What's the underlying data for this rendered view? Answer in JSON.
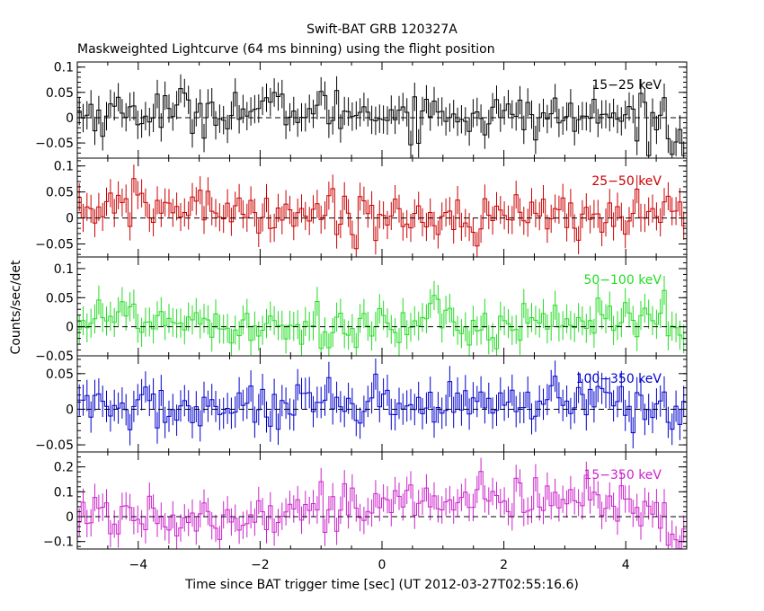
{
  "title": "Swift-BAT GRB 120327A",
  "subtitle": "Maskweighted Lightcurve (64 ms binning) using the flight position",
  "chart_data": {
    "type": "line",
    "xlabel": "Time since BAT trigger time [sec] (UT 2012-03-27T02:55:16.6)",
    "ylabel": "Counts/sec/det",
    "xlim": [
      -5,
      5
    ],
    "x_ticks": [
      -4,
      -2,
      0,
      2,
      4
    ],
    "x_tick_labels": [
      "−4",
      "−2",
      "0",
      "2",
      "4"
    ],
    "bin_width": 0.064,
    "grid": false,
    "panels": [
      {
        "name": "15−25 keV",
        "color": "#000000",
        "ylim": [
          -0.08,
          0.11
        ],
        "y_ticks": [
          -0.05,
          0,
          0.05,
          0.1
        ],
        "y_tick_labels": [
          "−0.05",
          "0",
          "0.05",
          "0.1"
        ],
        "mean_level": 0.012,
        "noise": 0.022,
        "error": 0.028,
        "end_value": -0.045
      },
      {
        "name": "25−50 keV",
        "color": "#cc0000",
        "ylim": [
          -0.075,
          0.115
        ],
        "y_ticks": [
          -0.05,
          0,
          0.05,
          0.1
        ],
        "y_tick_labels": [
          "−0.05",
          "0",
          "0.05",
          "0.1"
        ],
        "mean_level": 0.015,
        "noise": 0.022,
        "error": 0.027,
        "end_value": 0.01
      },
      {
        "name": "50−100 keV",
        "color": "#22dd22",
        "ylim": [
          -0.05,
          0.12
        ],
        "y_ticks": [
          -0.05,
          0,
          0.05,
          0.1
        ],
        "y_tick_labels": [
          "−0.05",
          "0",
          "0.05",
          "0.1"
        ],
        "mean_level": 0.015,
        "noise": 0.02,
        "error": 0.025,
        "end_value": -0.02
      },
      {
        "name": "100−350 keV",
        "color": "#0000cc",
        "ylim": [
          -0.06,
          0.075
        ],
        "y_ticks": [
          -0.05,
          0,
          0.05
        ],
        "y_tick_labels": [
          "−0.05",
          "0",
          "0.05"
        ],
        "mean_level": 0.005,
        "noise": 0.017,
        "error": 0.022,
        "end_value": -0.01
      },
      {
        "name": "15−350 keV",
        "color": "#cc22cc",
        "ylim": [
          -0.13,
          0.26
        ],
        "y_ticks": [
          -0.1,
          0,
          0.1,
          0.2
        ],
        "y_tick_labels": [
          "−0.1",
          "0",
          "0.1",
          "0.2"
        ],
        "mean_level": 0.05,
        "noise": 0.045,
        "error": 0.055,
        "end_value": -0.07
      }
    ]
  }
}
